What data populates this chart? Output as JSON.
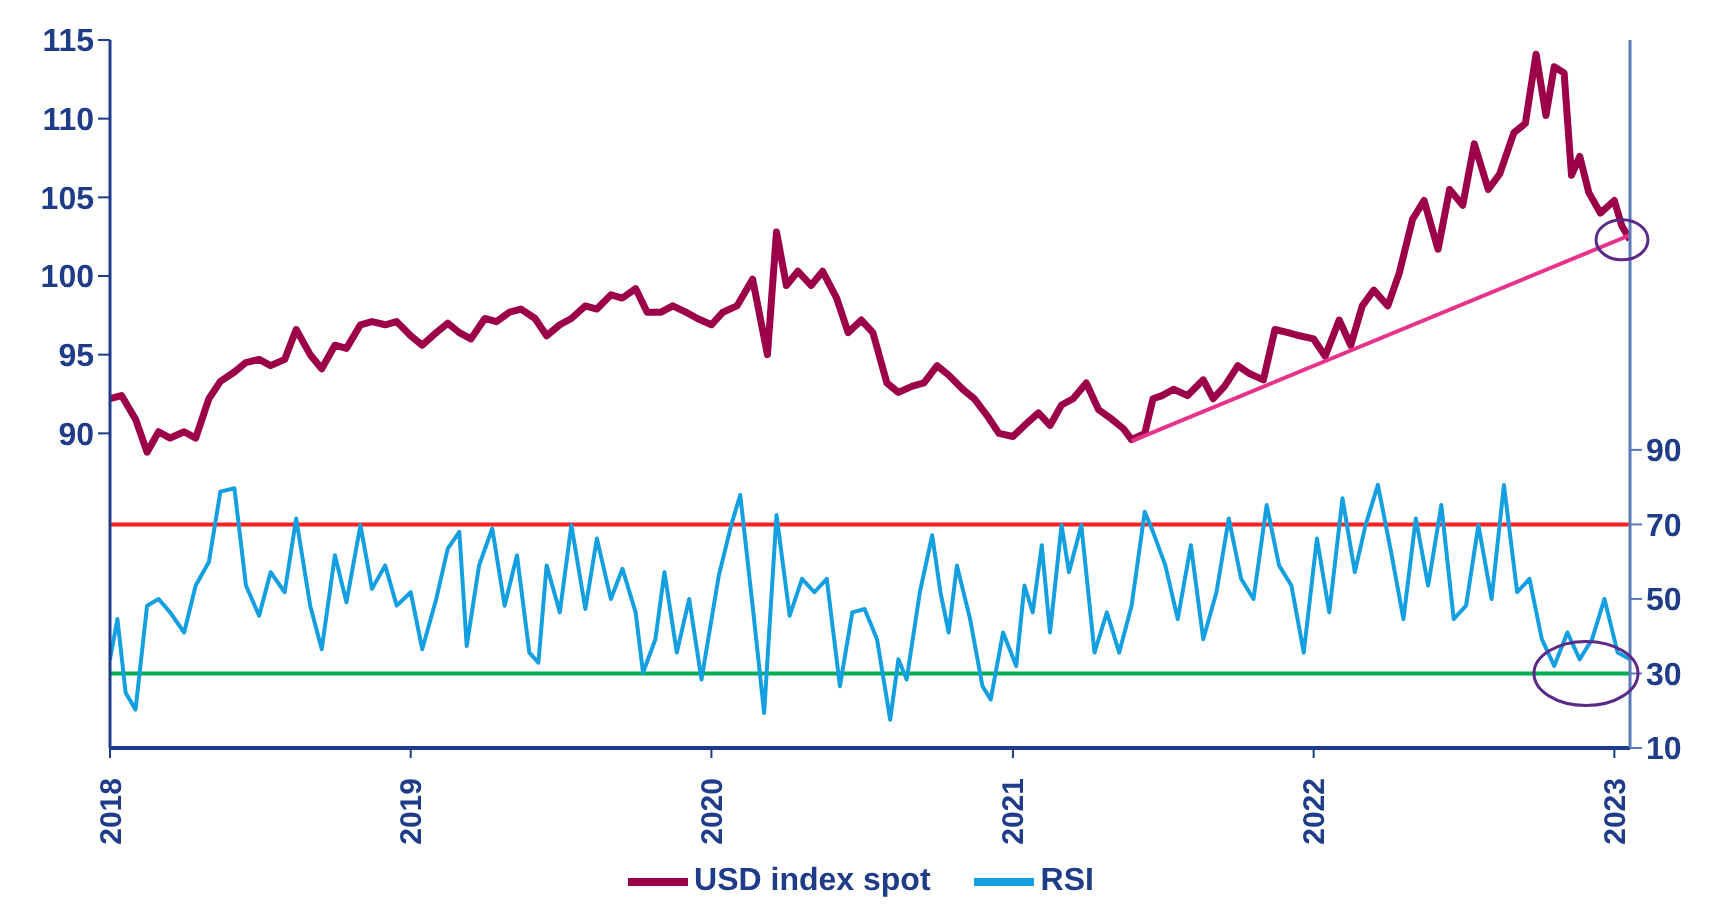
{
  "chart_data": {
    "type": "line",
    "xlim": [
      "2018-01-01",
      "2023-01-20"
    ],
    "xticks": [
      "2018",
      "2019",
      "2020",
      "2021",
      "2022",
      "2023"
    ],
    "ylim": [
      70,
      115
    ],
    "yticks": [
      90,
      95,
      100,
      105,
      110,
      115
    ],
    "y2lim": [
      10,
      200
    ],
    "y2ticks": [
      10,
      30,
      50,
      70,
      90
    ],
    "legend": "bottom",
    "marker": "none",
    "series": [
      {
        "name": "USD index spot",
        "color": "#9b0048",
        "x": [
          "2018-01-01",
          "2018-01-15",
          "2018-02-01",
          "2018-02-15",
          "2018-03-01",
          "2018-03-15",
          "2018-04-01",
          "2018-04-15",
          "2018-05-01",
          "2018-05-15",
          "2018-06-01",
          "2018-06-15",
          "2018-07-01",
          "2018-07-15",
          "2018-08-01",
          "2018-08-15",
          "2018-09-01",
          "2018-09-15",
          "2018-10-01",
          "2018-10-15",
          "2018-11-01",
          "2018-11-15",
          "2018-12-01",
          "2018-12-15",
          "2019-01-01",
          "2019-01-15",
          "2019-02-01",
          "2019-02-15",
          "2019-03-01",
          "2019-03-15",
          "2019-04-01",
          "2019-04-15",
          "2019-05-01",
          "2019-05-15",
          "2019-06-01",
          "2019-06-15",
          "2019-07-01",
          "2019-07-15",
          "2019-08-01",
          "2019-08-15",
          "2019-09-01",
          "2019-09-15",
          "2019-10-01",
          "2019-10-15",
          "2019-11-01",
          "2019-11-15",
          "2019-12-01",
          "2019-12-15",
          "2020-01-01",
          "2020-01-15",
          "2020-02-01",
          "2020-02-20",
          "2020-03-09",
          "2020-03-20",
          "2020-04-01",
          "2020-04-15",
          "2020-05-01",
          "2020-05-15",
          "2020-06-01",
          "2020-06-15",
          "2020-07-01",
          "2020-07-15",
          "2020-08-01",
          "2020-08-15",
          "2020-09-01",
          "2020-09-15",
          "2020-10-01",
          "2020-10-15",
          "2020-11-01",
          "2020-11-15",
          "2020-12-01",
          "2020-12-15",
          "2021-01-01",
          "2021-01-15",
          "2021-02-01",
          "2021-02-15",
          "2021-03-01",
          "2021-03-15",
          "2021-03-31",
          "2021-04-15",
          "2021-05-01",
          "2021-05-15",
          "2021-05-25",
          "2021-06-10",
          "2021-06-20",
          "2021-07-01",
          "2021-07-15",
          "2021-08-01",
          "2021-08-20",
          "2021-09-01",
          "2021-09-15",
          "2021-10-01",
          "2021-10-15",
          "2021-11-01",
          "2021-11-15",
          "2021-12-01",
          "2021-12-15",
          "2022-01-01",
          "2022-01-15",
          "2022-02-01",
          "2022-02-15",
          "2022-03-01",
          "2022-03-15",
          "2022-04-01",
          "2022-04-15",
          "2022-05-01",
          "2022-05-15",
          "2022-06-01",
          "2022-06-15",
          "2022-07-01",
          "2022-07-15",
          "2022-08-01",
          "2022-08-15",
          "2022-09-01",
          "2022-09-15",
          "2022-09-28",
          "2022-10-10",
          "2022-10-20",
          "2022-11-01",
          "2022-11-10",
          "2022-11-20",
          "2022-12-01",
          "2022-12-15",
          "2023-01-01",
          "2023-01-10",
          "2023-01-20"
        ],
        "values": [
          92.2,
          92.4,
          90.9,
          88.8,
          90.1,
          89.7,
          90.1,
          89.7,
          92.2,
          93.3,
          93.9,
          94.5,
          94.7,
          94.3,
          94.7,
          96.6,
          95.0,
          94.1,
          95.6,
          95.4,
          96.9,
          97.1,
          96.9,
          97.1,
          96.2,
          95.6,
          96.4,
          97.0,
          96.4,
          96.0,
          97.3,
          97.1,
          97.7,
          97.9,
          97.3,
          96.2,
          96.9,
          97.3,
          98.1,
          97.9,
          98.8,
          98.6,
          99.2,
          97.7,
          97.7,
          98.1,
          97.7,
          97.3,
          96.9,
          97.7,
          98.1,
          99.8,
          95.0,
          102.8,
          99.4,
          100.3,
          99.4,
          100.3,
          98.6,
          96.4,
          97.2,
          96.4,
          93.2,
          92.6,
          93.0,
          93.2,
          94.3,
          93.7,
          92.8,
          92.2,
          91.1,
          90.0,
          89.8,
          90.5,
          91.3,
          90.5,
          91.8,
          92.2,
          93.2,
          91.5,
          90.9,
          90.3,
          89.6,
          90.0,
          92.2,
          92.4,
          92.8,
          92.4,
          93.4,
          92.2,
          93.0,
          94.3,
          93.8,
          93.4,
          96.6,
          96.4,
          96.2,
          96.0,
          94.9,
          97.2,
          95.6,
          98.1,
          99.1,
          98.1,
          100.2,
          103.6,
          104.8,
          101.7,
          105.5,
          104.5,
          108.4,
          105.5,
          106.5,
          109.1,
          109.7,
          114.1,
          110.2,
          113.3,
          112.9,
          106.4,
          107.6,
          105.3,
          104.0,
          104.8,
          103.2,
          102.3
        ]
      },
      {
        "name": "RSI",
        "color": "#14a0e0",
        "axis": "y2",
        "x": [
          "2018-01-01",
          "2018-01-10",
          "2018-01-20",
          "2018-02-01",
          "2018-02-15",
          "2018-03-01",
          "2018-03-15",
          "2018-04-01",
          "2018-04-15",
          "2018-05-01",
          "2018-05-15",
          "2018-06-01",
          "2018-06-15",
          "2018-07-01",
          "2018-07-15",
          "2018-08-01",
          "2018-08-15",
          "2018-09-01",
          "2018-09-15",
          "2018-10-01",
          "2018-10-15",
          "2018-11-01",
          "2018-11-15",
          "2018-12-01",
          "2018-12-15",
          "2019-01-01",
          "2019-01-15",
          "2019-02-01",
          "2019-02-15",
          "2019-03-01",
          "2019-03-10",
          "2019-03-25",
          "2019-04-10",
          "2019-04-25",
          "2019-05-10",
          "2019-05-25",
          "2019-06-05",
          "2019-06-15",
          "2019-07-01",
          "2019-07-15",
          "2019-08-01",
          "2019-08-15",
          "2019-09-01",
          "2019-09-15",
          "2019-10-01",
          "2019-10-10",
          "2019-10-25",
          "2019-11-05",
          "2019-11-20",
          "2019-12-05",
          "2019-12-20",
          "2020-01-10",
          "2020-01-25",
          "2020-02-05",
          "2020-02-20",
          "2020-03-05",
          "2020-03-20",
          "2020-04-05",
          "2020-04-20",
          "2020-05-05",
          "2020-05-20",
          "2020-06-05",
          "2020-06-20",
          "2020-07-05",
          "2020-07-20",
          "2020-08-05",
          "2020-08-15",
          "2020-08-25",
          "2020-09-10",
          "2020-09-25",
          "2020-10-05",
          "2020-10-15",
          "2020-10-25",
          "2020-11-10",
          "2020-11-25",
          "2020-12-05",
          "2020-12-20",
          "2021-01-05",
          "2021-01-15",
          "2021-01-25",
          "2021-02-05",
          "2021-02-15",
          "2021-03-01",
          "2021-03-10",
          "2021-03-25",
          "2021-04-10",
          "2021-04-25",
          "2021-05-10",
          "2021-05-25",
          "2021-06-10",
          "2021-06-20",
          "2021-07-05",
          "2021-07-20",
          "2021-08-05",
          "2021-08-20",
          "2021-09-05",
          "2021-09-20",
          "2021-10-05",
          "2021-10-20",
          "2021-11-05",
          "2021-11-20",
          "2021-12-05",
          "2021-12-20",
          "2022-01-05",
          "2022-01-20",
          "2022-02-05",
          "2022-02-20",
          "2022-03-05",
          "2022-03-20",
          "2022-04-05",
          "2022-04-20",
          "2022-05-05",
          "2022-05-20",
          "2022-06-05",
          "2022-06-20",
          "2022-07-05",
          "2022-07-20",
          "2022-08-05",
          "2022-08-20",
          "2022-09-05",
          "2022-09-20",
          "2022-10-05",
          "2022-10-20",
          "2022-11-05",
          "2022-11-20",
          "2022-12-05",
          "2022-12-20",
          "2023-01-05",
          "2023-01-20"
        ],
        "values": [
          33.8,
          44.6,
          24.8,
          20.3,
          48.2,
          50,
          46.4,
          41,
          53.6,
          59.9,
          78.8,
          79.7,
          53.6,
          45.5,
          57.2,
          51.8,
          71.6,
          48.2,
          36.5,
          61.7,
          49.1,
          69.8,
          52.7,
          59,
          48.2,
          51.8,
          36.5,
          50,
          63.5,
          68,
          37.4,
          59,
          68.9,
          48.2,
          61.7,
          35.6,
          32.9,
          59,
          46.4,
          69.8,
          47.3,
          66.2,
          50,
          58.1,
          46.4,
          30.2,
          39.2,
          57.2,
          35.6,
          50,
          28.4,
          56.3,
          69.8,
          77.9,
          48.2,
          19.4,
          72.5,
          45.5,
          55.4,
          51.8,
          55.4,
          26.6,
          46.4,
          47.3,
          39.2,
          17.6,
          33.8,
          28.4,
          51.8,
          67.1,
          51.8,
          41,
          59,
          44.6,
          26.6,
          23,
          41,
          32,
          53.6,
          46.4,
          64.4,
          41,
          69.8,
          57.2,
          69.8,
          35.6,
          46.4,
          35.6,
          48.2,
          73.4,
          68,
          59,
          44.6,
          64.4,
          39.2,
          51.8,
          71.6,
          55.4,
          50,
          75.2,
          59,
          53.6,
          35.6,
          66.2,
          46.4,
          77,
          57.2,
          69.8,
          80.6,
          62.6,
          44.6,
          71.6,
          53.6,
          75.2,
          44.6,
          48.2,
          69.8,
          50,
          80.6,
          51.8,
          55.4,
          39.2,
          32,
          41,
          33.8,
          39.2,
          50,
          35.6,
          33.8
        ]
      },
      {
        "color": "#e8338a",
        "x": [
          "2021-05-25",
          "2023-01-20"
        ],
        "values": [
          89.5,
          102.6
        ]
      }
    ],
    "ref_lines": [
      {
        "axis": "y2",
        "value": 70,
        "color": "#ff1f1f"
      },
      {
        "axis": "y2",
        "value": 30,
        "color": "#00b04f"
      }
    ]
  }
}
